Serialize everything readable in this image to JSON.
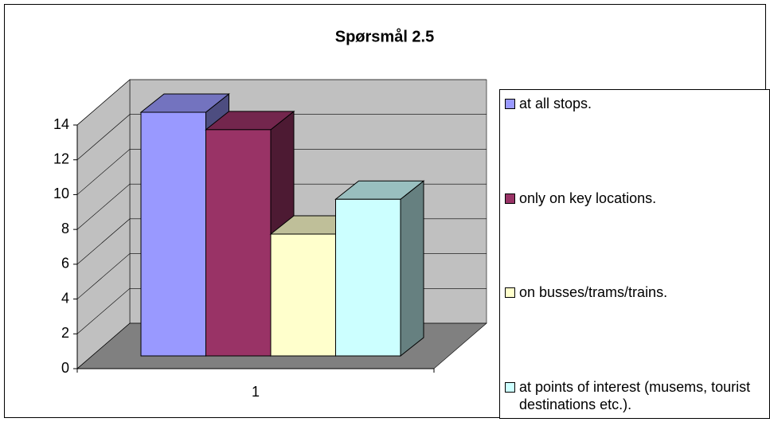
{
  "chart_data": {
    "type": "bar3d",
    "title": "Spørsmål 2.5",
    "categories": [
      "1"
    ],
    "series": [
      {
        "name": "at all stops.",
        "color": "#9999ff",
        "values": [
          14
        ]
      },
      {
        "name": "only on key locations.",
        "color": "#993366",
        "values": [
          13
        ]
      },
      {
        "name": "on busses/trams/trains.",
        "color": "#ffffcc",
        "values": [
          7
        ]
      },
      {
        "name": "at points of interest (musems, tourist destinations etc.).",
        "color": "#ccffff",
        "values": [
          9
        ]
      }
    ],
    "ylim": [
      0,
      14
    ],
    "yticks": [
      0,
      2,
      4,
      6,
      8,
      10,
      12,
      14
    ],
    "grid": true,
    "legend": "right"
  }
}
